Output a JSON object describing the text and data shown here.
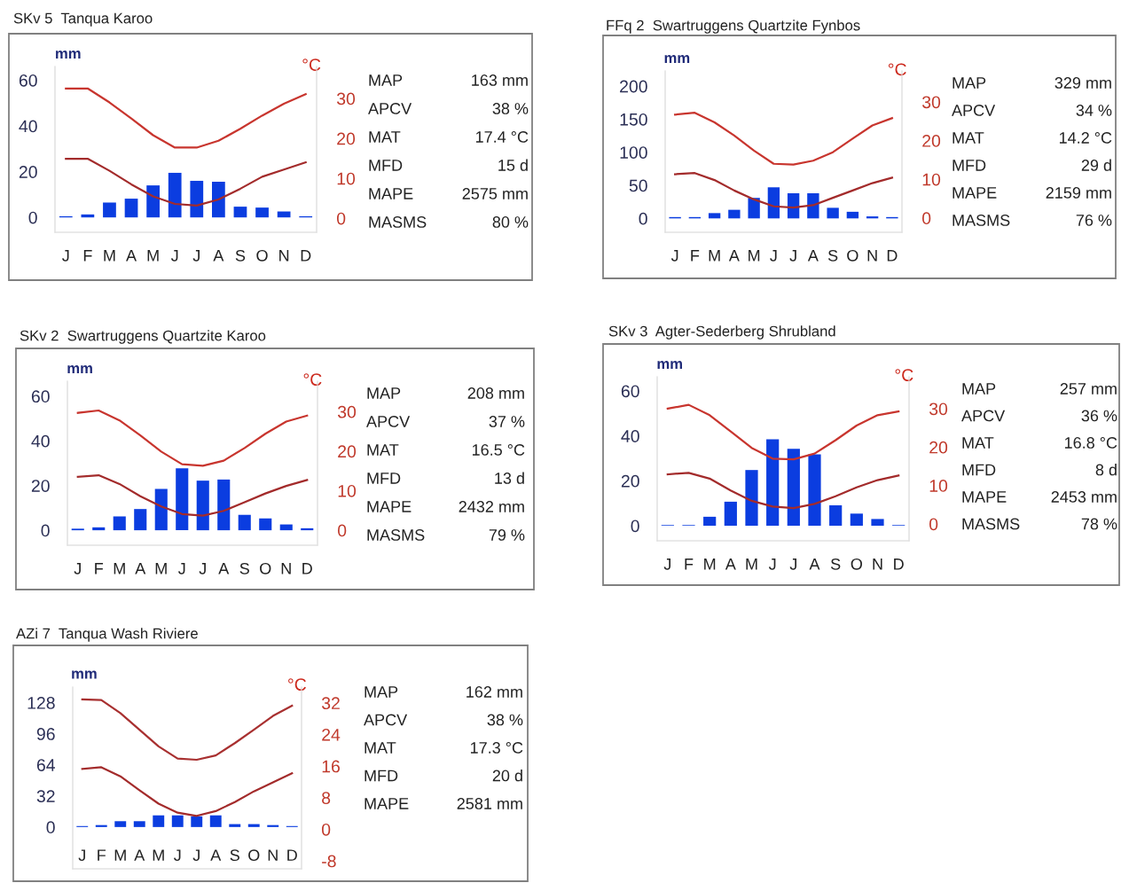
{
  "chart_data": [
    {
      "type": "bar",
      "title": "SKv 5  Tanqua Karoo",
      "ylabel": "mm",
      "y2label": "°C",
      "categories": [
        "J",
        "F",
        "M",
        "A",
        "M",
        "J",
        "J",
        "A",
        "S",
        "O",
        "N",
        "D"
      ],
      "series": [
        {
          "color": "#0b3de0",
          "values": [
            0.5,
            1.3,
            6.5,
            8.2,
            14,
            19.5,
            16,
            15.6,
            4.7,
            4.3,
            2.6,
            0.5
          ]
        },
        {
          "type": "line",
          "axis": "y2",
          "color": "#c8352e",
          "values": [
            32.5,
            32.5,
            29,
            25,
            20.8,
            17.7,
            17.7,
            19.4,
            22.4,
            25.7,
            28.7,
            31.1
          ]
        },
        {
          "type": "line",
          "axis": "y2",
          "color": "#a32b2b",
          "values": [
            14.9,
            14.9,
            11.9,
            8.5,
            5.5,
            3.6,
            3.2,
            4.7,
            7.4,
            10.4,
            12.2,
            14
          ]
        }
      ],
      "ylim": [
        -6.5,
        66
      ],
      "yticks": [
        0,
        20,
        40,
        60
      ],
      "y2lim": [
        -3.5,
        38
      ],
      "y2ticks": [
        0,
        10,
        20,
        30
      ],
      "annotations": [
        "MAP",
        "163 mm",
        "APCV",
        "38 %",
        "MAT",
        "17.4 °C",
        "MFD",
        "15 d",
        "MAPE",
        "2575 mm",
        "MASMS",
        "80 %"
      ]
    },
    {
      "type": "bar",
      "title": "FFq 2  Swartruggens Quartzite Fynbos",
      "ylabel": "mm",
      "y2label": "°C",
      "categories": [
        "J",
        "F",
        "M",
        "A",
        "M",
        "J",
        "J",
        "A",
        "S",
        "O",
        "N",
        "D"
      ],
      "series": [
        {
          "color": "#0b3de0",
          "values": [
            2,
            2,
            8,
            13,
            31,
            47,
            38,
            38,
            16,
            10,
            3,
            2
          ]
        },
        {
          "type": "line",
          "axis": "y2",
          "color": "#c8352e",
          "values": [
            26.7,
            27.2,
            24.7,
            21.3,
            17.4,
            14,
            13.8,
            14.8,
            17,
            20.5,
            23.9,
            25.8
          ]
        },
        {
          "type": "line",
          "axis": "y2",
          "color": "#a32b2b",
          "values": [
            11.3,
            11.6,
            9.8,
            7.1,
            4.8,
            3,
            2.7,
            3.3,
            5.2,
            7.1,
            9,
            10.4
          ]
        }
      ],
      "ylim": [
        -21,
        223
      ],
      "yticks": [
        0,
        50,
        100,
        150,
        200
      ],
      "y2lim": [
        -3.7,
        38
      ],
      "y2ticks": [
        0,
        10,
        20,
        30
      ],
      "annotations": [
        "MAP",
        "329 mm",
        "APCV",
        "34 %",
        "MAT",
        "14.2 °C",
        "MFD",
        "29 d",
        "MAPE",
        "2159 mm",
        "MASMS",
        "76 %"
      ]
    },
    {
      "type": "bar",
      "title": "SKv 2  Swartruggens Quartzite Karoo",
      "ylabel": "mm",
      "y2label": "°C",
      "categories": [
        "J",
        "F",
        "M",
        "A",
        "M",
        "J",
        "J",
        "A",
        "S",
        "O",
        "N",
        "D"
      ],
      "series": [
        {
          "color": "#0b3de0",
          "values": [
            0.7,
            1.3,
            6.2,
            9.5,
            18.5,
            27.7,
            22.2,
            22.7,
            6.9,
            5.3,
            2.6,
            0.9
          ]
        },
        {
          "type": "line",
          "axis": "y2",
          "color": "#c8352e",
          "values": [
            29.7,
            30.3,
            27.8,
            24,
            19.9,
            16.7,
            16.3,
            17.6,
            20.8,
            24.4,
            27.5,
            29
          ]
        },
        {
          "type": "line",
          "axis": "y2",
          "color": "#a32b2b",
          "values": [
            13.5,
            13.9,
            11.7,
            8.6,
            6,
            4.1,
            3.7,
            4.9,
            7.1,
            9.3,
            11.2,
            12.7
          ]
        }
      ],
      "ylim": [
        -6.7,
        66.7
      ],
      "yticks": [
        0,
        20,
        40,
        60
      ],
      "y2lim": [
        -3.8,
        37.7
      ],
      "y2ticks": [
        0,
        10,
        20,
        30
      ],
      "annotations": [
        "MAP",
        "208 mm",
        "APCV",
        "37 %",
        "MAT",
        "16.5 °C",
        "MFD",
        "13 d",
        "MAPE",
        "2432 mm",
        "MASMS",
        "79 %"
      ]
    },
    {
      "type": "bar",
      "title": "SKv 3  Agter-Sederberg Shrubland",
      "ylabel": "mm",
      "y2label": "°C",
      "categories": [
        "J",
        "F",
        "M",
        "A",
        "M",
        "J",
        "J",
        "A",
        "S",
        "O",
        "N",
        "D"
      ],
      "series": [
        {
          "color": "#0b3de0",
          "values": [
            0.3,
            0.3,
            4,
            10.7,
            24.8,
            38.5,
            34.2,
            31.8,
            9.1,
            5.4,
            3,
            0.3
          ]
        },
        {
          "type": "line",
          "axis": "y2",
          "color": "#c8352e",
          "values": [
            30,
            31,
            28.3,
            24.1,
            19.8,
            17,
            16.8,
            18.3,
            21.8,
            25.6,
            28.3,
            29.3
          ]
        },
        {
          "type": "line",
          "axis": "y2",
          "color": "#a32b2b",
          "values": [
            12.9,
            13.3,
            11.8,
            8.7,
            6,
            4.5,
            4.1,
            5.2,
            7.2,
            9.5,
            11.4,
            12.6
          ]
        }
      ],
      "ylim": [
        -6.7,
        66.3
      ],
      "yticks": [
        0,
        20,
        40,
        60
      ],
      "y2lim": [
        -4.4,
        38.3
      ],
      "y2ticks": [
        0,
        10,
        20,
        30
      ],
      "annotations": [
        "MAP",
        "257 mm",
        "APCV",
        "36 %",
        "MAT",
        "16.8 °C",
        "MFD",
        "8 d",
        "MAPE",
        "2453 mm",
        "MASMS",
        "78 %"
      ]
    },
    {
      "type": "bar",
      "title": "AZi 7  Tanqua Wash Riviere",
      "ylabel": "mm",
      "y2label": "°C",
      "categories": [
        "J",
        "F",
        "M",
        "A",
        "M",
        "J",
        "J",
        "A",
        "S",
        "O",
        "N",
        "D"
      ],
      "series": [
        {
          "color": "#0b3de0",
          "values": [
            1,
            2,
            6,
            6,
            12,
            12,
            11,
            12,
            3,
            3,
            2,
            1
          ]
        },
        {
          "type": "line",
          "axis": "y2",
          "color": "#a83030",
          "values": [
            32.9,
            32.7,
            29.4,
            25.2,
            21,
            17.9,
            17.6,
            18.7,
            21.8,
            25.2,
            28.7,
            31.3
          ]
        },
        {
          "type": "line",
          "axis": "y2",
          "color": "#a32b2b",
          "values": [
            15.3,
            15.7,
            13.4,
            9.9,
            6.5,
            4.2,
            3.4,
            4.6,
            6.9,
            9.6,
            11.9,
            14.2
          ]
        }
      ],
      "ylim": [
        -43,
        144
      ],
      "yticks": [
        0,
        32,
        64,
        96,
        128
      ],
      "y2lim": [
        -10,
        36
      ],
      "y2ticks": [
        -8,
        0,
        8,
        16,
        24,
        32
      ],
      "annotations": [
        "MAP",
        "162 mm",
        "APCV",
        "38 %",
        "MAT",
        "17.3 °C",
        "MFD",
        "20 d",
        "MAPE",
        "2581 mm"
      ]
    }
  ]
}
